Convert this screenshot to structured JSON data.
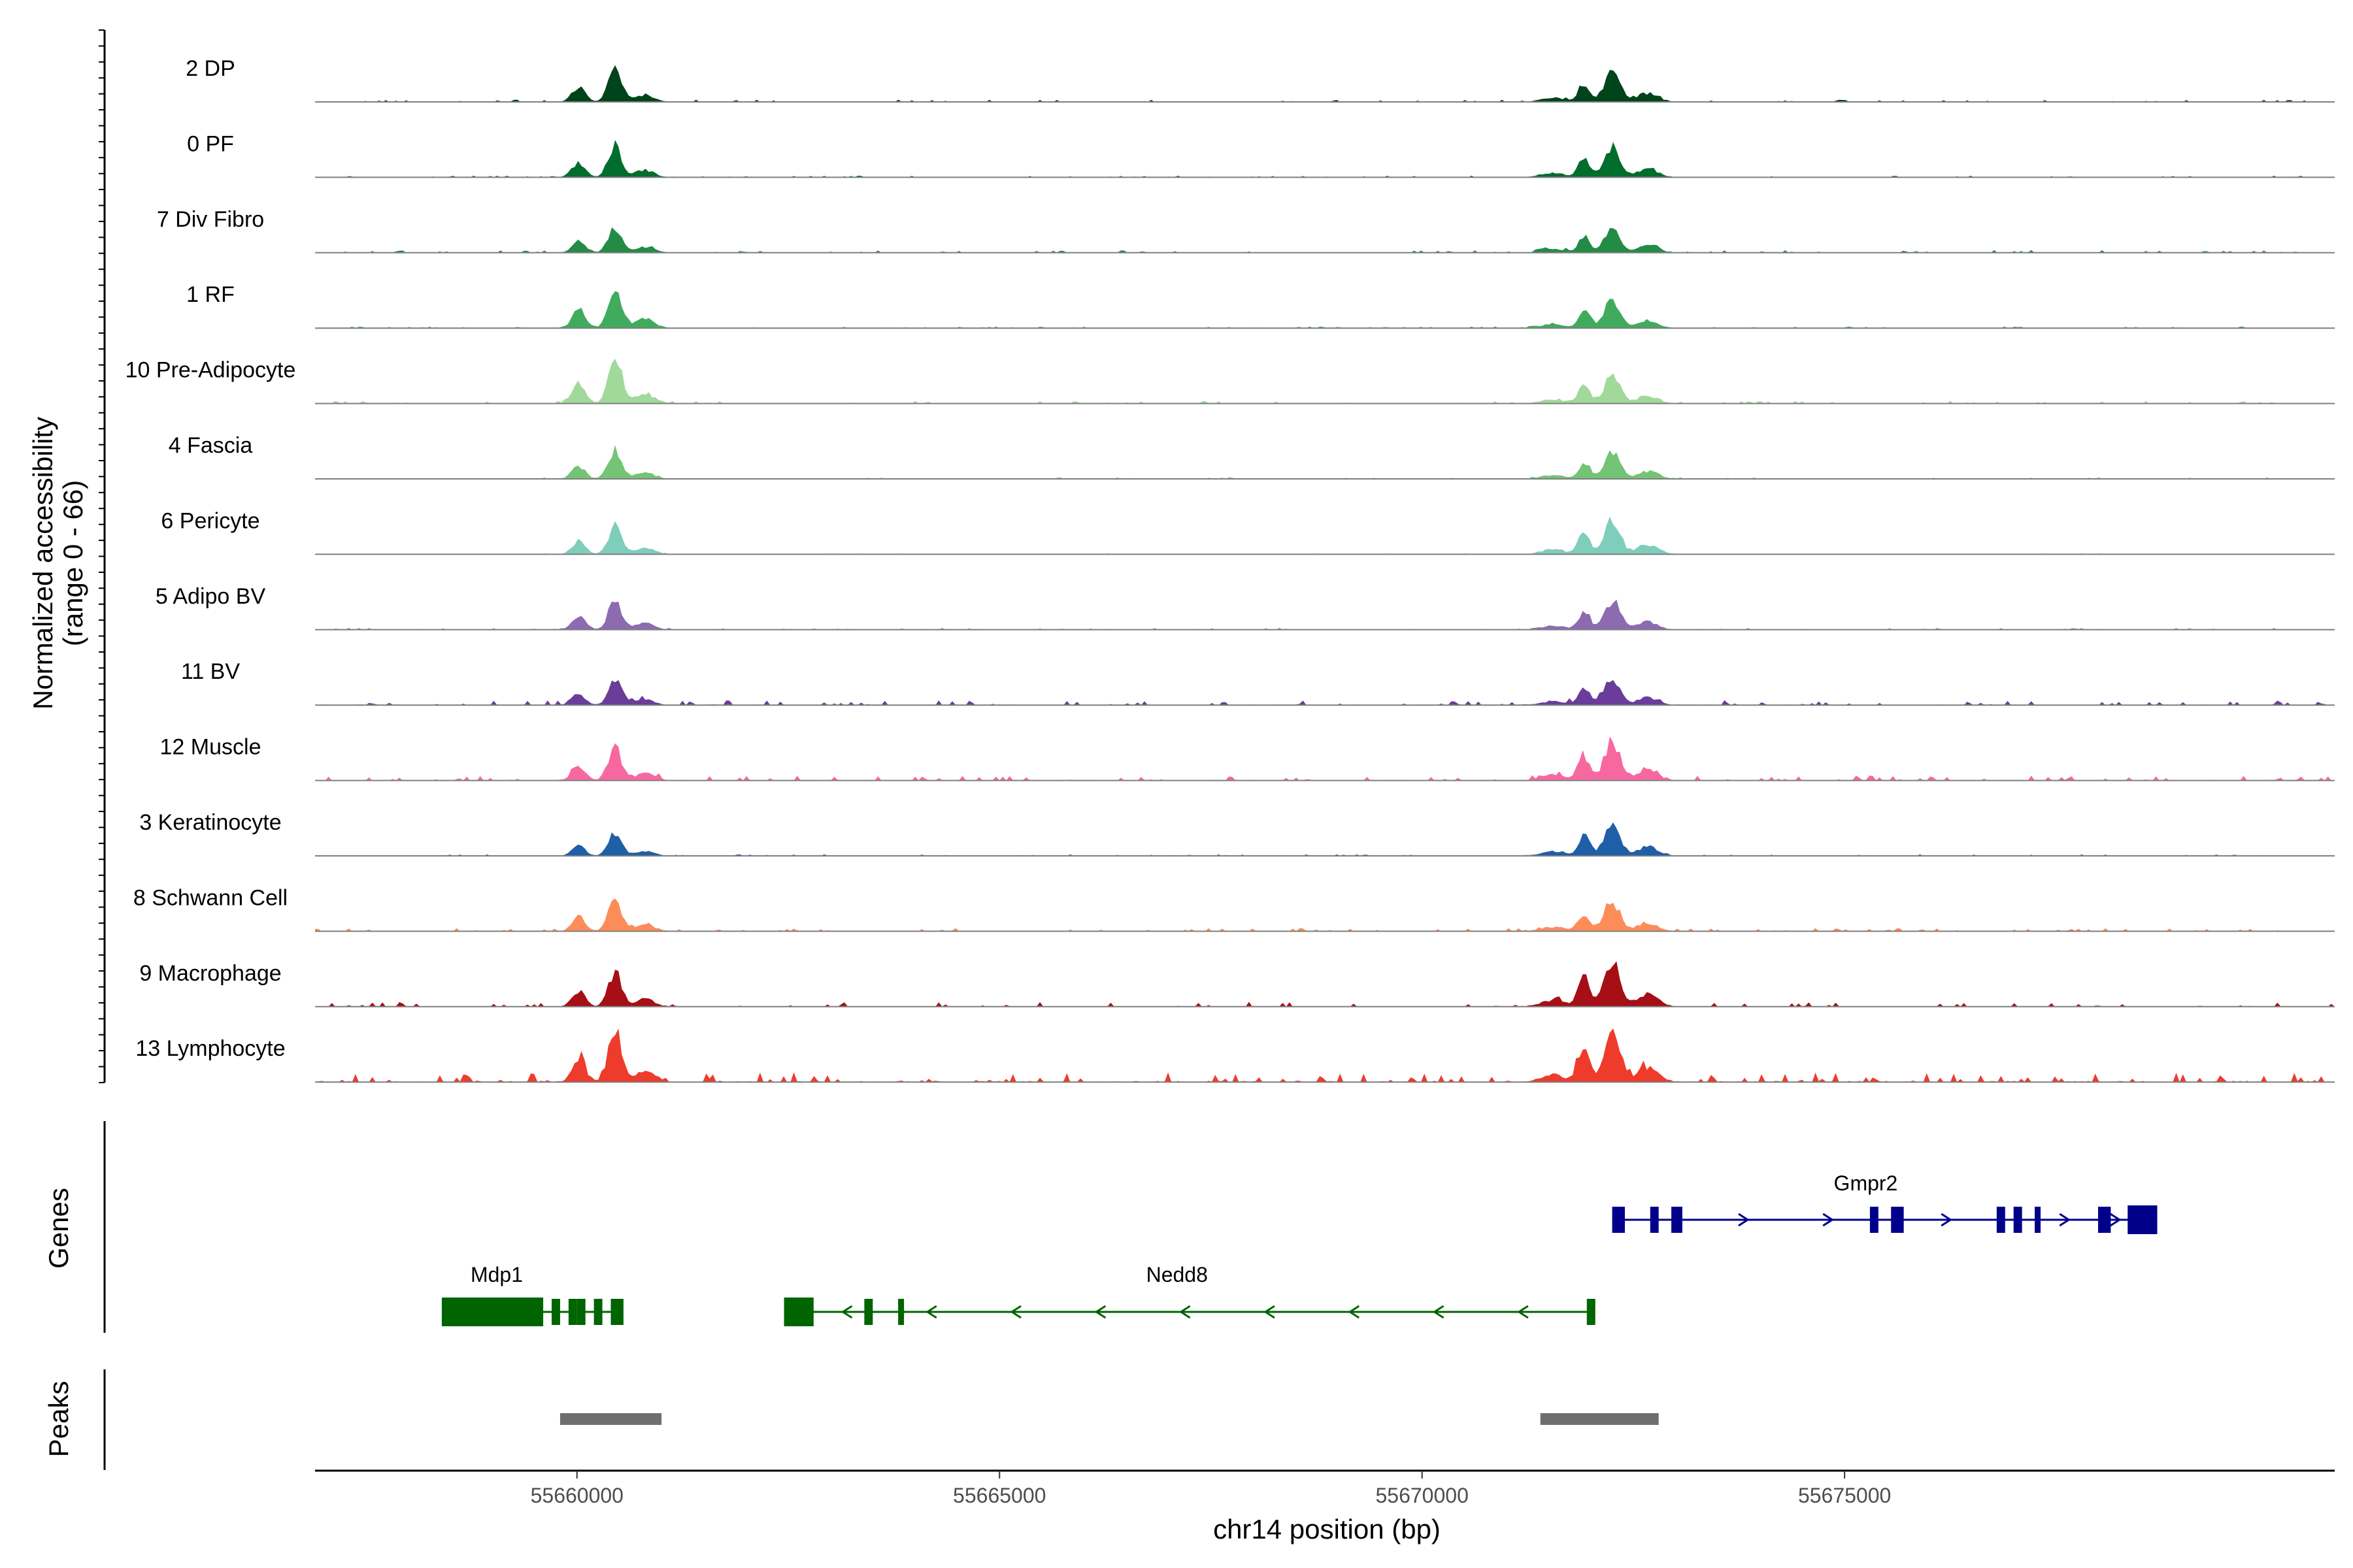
{
  "chart_data": {
    "type": "area",
    "title": "",
    "xlabel": "chr14 position (bp)",
    "ylabel": [
      "Normalized accessibility",
      "(range 0 - 66)"
    ],
    "ylim": [
      0,
      66
    ],
    "xlim": [
      55656900,
      55680800
    ],
    "x_ticks": [
      55660000,
      55665000,
      55670000,
      55675000
    ],
    "x_tick_labels": [
      "55660000",
      "55665000",
      "55670000",
      "55675000"
    ],
    "panel_titles": {
      "genes": "Genes",
      "peaks": "Peaks"
    },
    "tracks": [
      {
        "name": "2 DP",
        "color": "#00441b",
        "peak1": 40,
        "peak2": 38,
        "noise": 1.4
      },
      {
        "name": "0 PF",
        "color": "#006d2c",
        "peak1": 40,
        "peak2": 38,
        "noise": 1.0
      },
      {
        "name": "7 Div Fibro",
        "color": "#238b45",
        "peak1": 32,
        "peak2": 32,
        "noise": 1.6
      },
      {
        "name": "1 RF",
        "color": "#41ab5d",
        "peak1": 52,
        "peak2": 34,
        "noise": 1.0
      },
      {
        "name": "10 Pre-Adipocyte",
        "color": "#a1d99b",
        "peak1": 56,
        "peak2": 34,
        "noise": 1.6
      },
      {
        "name": "4 Fascia",
        "color": "#74c476",
        "peak1": 36,
        "peak2": 34,
        "noise": 1.0
      },
      {
        "name": "6 Pericyte",
        "color": "#7fcdbb",
        "peak1": 36,
        "peak2": 44,
        "noise": 0.6
      },
      {
        "name": "5 Adipo BV",
        "color": "#8c6bb1",
        "peak1": 36,
        "peak2": 36,
        "noise": 1.0
      },
      {
        "name": "11 BV",
        "color": "#6a3d9a",
        "peak1": 32,
        "peak2": 34,
        "noise": 3.0
      },
      {
        "name": "12 Muscle",
        "color": "#f768a1",
        "peak1": 40,
        "peak2": 48,
        "noise": 3.0
      },
      {
        "name": "3 Keratinocyte",
        "color": "#1f5fa8",
        "peak1": 28,
        "peak2": 40,
        "noise": 1.0
      },
      {
        "name": "8 Schwann Cell",
        "color": "#fc8d59",
        "peak1": 40,
        "peak2": 36,
        "noise": 2.0
      },
      {
        "name": "9 Macrophage",
        "color": "#a50f15",
        "peak1": 42,
        "peak2": 56,
        "noise": 3.0
      },
      {
        "name": "13 Lymphocyte",
        "color": "#ef3b2c",
        "peak1": 66,
        "peak2": 66,
        "noise": 6.0
      }
    ],
    "peak_centers": [
      55660450,
      55672250
    ],
    "genes": [
      {
        "name": "Gmpr2",
        "strand": "+",
        "color": "#00008b",
        "start": 55672250,
        "end": 55678700,
        "exons": [
          [
            55672250,
            55672400
          ],
          [
            55672700,
            55672800
          ],
          [
            55672950,
            55673080
          ],
          [
            55675300,
            55675400
          ],
          [
            55675550,
            55675700
          ],
          [
            55676800,
            55676900
          ],
          [
            55677000,
            55677100
          ],
          [
            55677250,
            55677300
          ],
          [
            55678000,
            55678150
          ],
          [
            55678350,
            55678700
          ]
        ],
        "arrows": [
          55673800,
          55674800,
          55676200,
          55677600,
          55678200
        ]
      },
      {
        "name": "Mdp1",
        "strand": "-",
        "color": "#006400",
        "start": 55658400,
        "end": 55660550,
        "exons": [
          [
            55658400,
            55659600
          ],
          [
            55659700,
            55659800
          ],
          [
            55659900,
            55660000
          ],
          [
            55660000,
            55660100
          ],
          [
            55660200,
            55660300
          ],
          [
            55660400,
            55660550
          ]
        ],
        "arrows": []
      },
      {
        "name": "Nedd8",
        "strand": "-",
        "color": "#006400",
        "start": 55662450,
        "end": 55672050,
        "exons": [
          [
            55662450,
            55662800
          ],
          [
            55663400,
            55663500
          ],
          [
            55663800,
            55663850
          ],
          [
            55671950,
            55672050
          ]
        ],
        "arrows": [
          55663200,
          55664200,
          55665200,
          55666200,
          55667200,
          55668200,
          55669200,
          55670200,
          55671200
        ]
      }
    ],
    "peaks": [
      [
        55659800,
        55661000
      ],
      [
        55671400,
        55672800
      ]
    ]
  }
}
